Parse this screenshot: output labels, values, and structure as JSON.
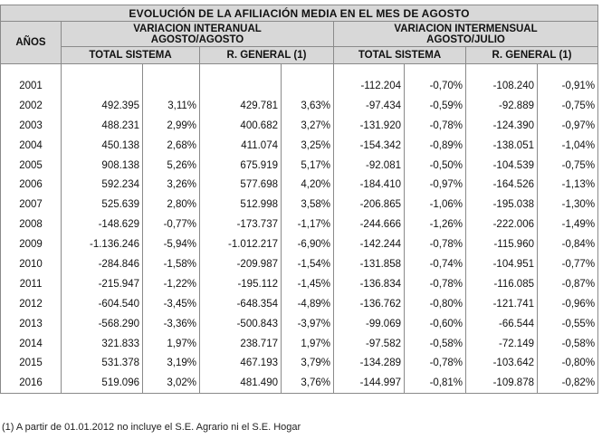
{
  "title": "EVOLUCIÓN DE LA AFILIACIÓN MEDIA EN EL MES DE AGOSTO",
  "col_years": "AÑOS",
  "group_a": {
    "line1": "VARIACION INTERANUAL",
    "line2": "AGOSTO/AGOSTO"
  },
  "group_b": {
    "line1": "VARIACION INTERMENSUAL",
    "line2": "AGOSTO/JULIO"
  },
  "sub_total": "TOTAL SISTEMA",
  "sub_general": "R. GENERAL (1)",
  "rows": [
    {
      "year": "2001",
      "a1": "",
      "a2": "",
      "a3": "",
      "a4": "",
      "b1": "-112.204",
      "b2": "-0,70%",
      "b3": "-108.240",
      "b4": "-0,91%"
    },
    {
      "year": "2002",
      "a1": "492.395",
      "a2": "3,11%",
      "a3": "429.781",
      "a4": "3,63%",
      "b1": "-97.434",
      "b2": "-0,59%",
      "b3": "-92.889",
      "b4": "-0,75%"
    },
    {
      "year": "2003",
      "a1": "488.231",
      "a2": "2,99%",
      "a3": "400.682",
      "a4": "3,27%",
      "b1": "-131.920",
      "b2": "-0,78%",
      "b3": "-124.390",
      "b4": "-0,97%"
    },
    {
      "year": "2004",
      "a1": "450.138",
      "a2": "2,68%",
      "a3": "411.074",
      "a4": "3,25%",
      "b1": "-154.342",
      "b2": "-0,89%",
      "b3": "-138.051",
      "b4": "-1,04%"
    },
    {
      "year": "2005",
      "a1": "908.138",
      "a2": "5,26%",
      "a3": "675.919",
      "a4": "5,17%",
      "b1": "-92.081",
      "b2": "-0,50%",
      "b3": "-104.539",
      "b4": "-0,75%"
    },
    {
      "year": "2006",
      "a1": "592.234",
      "a2": "3,26%",
      "a3": "577.698",
      "a4": "4,20%",
      "b1": "-184.410",
      "b2": "-0,97%",
      "b3": "-164.526",
      "b4": "-1,13%"
    },
    {
      "year": "2007",
      "a1": "525.639",
      "a2": "2,80%",
      "a3": "512.998",
      "a4": "3,58%",
      "b1": "-206.865",
      "b2": "-1,06%",
      "b3": "-195.038",
      "b4": "-1,30%"
    },
    {
      "year": "2008",
      "a1": "-148.629",
      "a2": "-0,77%",
      "a3": "-173.737",
      "a4": "-1,17%",
      "b1": "-244.666",
      "b2": "-1,26%",
      "b3": "-222.006",
      "b4": "-1,49%"
    },
    {
      "year": "2009",
      "a1": "-1.136.246",
      "a2": "-5,94%",
      "a3": "-1.012.217",
      "a4": "-6,90%",
      "b1": "-142.244",
      "b2": "-0,78%",
      "b3": "-115.960",
      "b4": "-0,84%"
    },
    {
      "year": "2010",
      "a1": "-284.846",
      "a2": "-1,58%",
      "a3": "-209.987",
      "a4": "-1,54%",
      "b1": "-131.858",
      "b2": "-0,74%",
      "b3": "-104.951",
      "b4": "-0,77%"
    },
    {
      "year": "2011",
      "a1": "-215.947",
      "a2": "-1,22%",
      "a3": "-195.112",
      "a4": "-1,45%",
      "b1": "-136.834",
      "b2": "-0,78%",
      "b3": "-116.085",
      "b4": "-0,87%"
    },
    {
      "year": "2012",
      "a1": "-604.540",
      "a2": "-3,45%",
      "a3": "-648.354",
      "a4": "-4,89%",
      "b1": "-136.762",
      "b2": "-0,80%",
      "b3": "-121.741",
      "b4": "-0,96%"
    },
    {
      "year": "2013",
      "a1": "-568.290",
      "a2": "-3,36%",
      "a3": "-500.843",
      "a4": "-3,97%",
      "b1": "-99.069",
      "b2": "-0,60%",
      "b3": "-66.544",
      "b4": "-0,55%"
    },
    {
      "year": "2014",
      "a1": "321.833",
      "a2": "1,97%",
      "a3": "238.717",
      "a4": "1,97%",
      "b1": "-97.582",
      "b2": "-0,58%",
      "b3": "-72.149",
      "b4": "-0,58%"
    },
    {
      "year": "2015",
      "a1": "531.378",
      "a2": "3,19%",
      "a3": "467.193",
      "a4": "3,79%",
      "b1": "-134.289",
      "b2": "-0,78%",
      "b3": "-103.642",
      "b4": "-0,80%"
    },
    {
      "year": "2016",
      "a1": "519.096",
      "a2": "3,02%",
      "a3": "481.490",
      "a4": "3,76%",
      "b1": "-144.997",
      "b2": "-0,81%",
      "b3": "-109.878",
      "b4": "-0,82%"
    }
  ],
  "footnote": "(1) A partir de 01.01.2012 no incluye el S.E. Agrario ni el S.E. Hogar",
  "colors": {
    "header_bg": "#d8d8d8",
    "border": "#8a8a8a"
  }
}
